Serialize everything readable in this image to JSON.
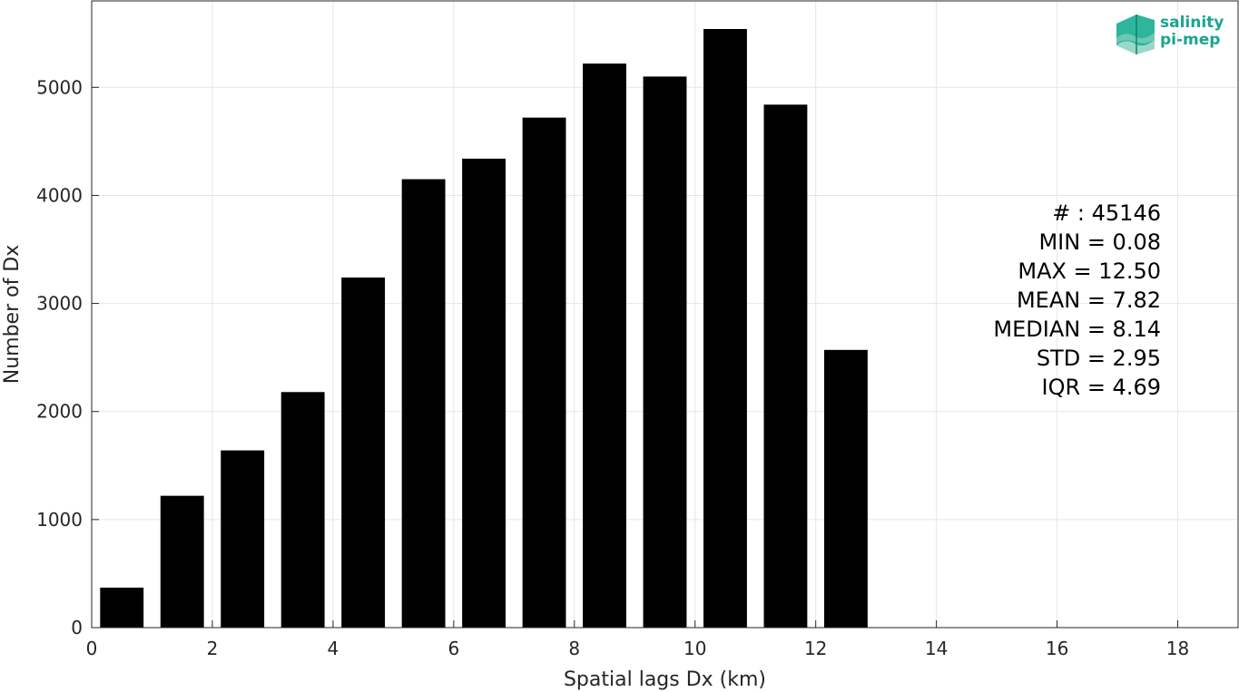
{
  "chart_data": {
    "type": "bar",
    "xlabel": "Spatial lags Dx (km)",
    "ylabel": "Number of Dx",
    "xlim": [
      0,
      19
    ],
    "ylim": [
      0,
      5800
    ],
    "xticks": [
      0,
      2,
      4,
      6,
      8,
      10,
      12,
      14,
      16,
      18
    ],
    "yticks": [
      0,
      1000,
      2000,
      3000,
      4000,
      5000
    ],
    "grid": true,
    "bar_color": "#000000",
    "bin_width": 1,
    "bin_centers": [
      0.5,
      1.5,
      2.5,
      3.5,
      4.5,
      5.5,
      6.5,
      7.5,
      8.5,
      9.5,
      10.5,
      11.5,
      12.5
    ],
    "values": [
      370,
      1220,
      1640,
      2180,
      3240,
      4150,
      4340,
      4720,
      5220,
      5100,
      5540,
      4840,
      2570
    ],
    "annotations": [
      "# : 45146",
      "MIN = 0.08",
      "MAX =  12.50",
      "MEAN = 7.82",
      "MEDIAN = 8.14",
      "STD = 2.95",
      "IQR = 4.69"
    ]
  },
  "logo": {
    "line1": "salinity",
    "line2": "pi-mep",
    "color": "#1aa58f"
  }
}
